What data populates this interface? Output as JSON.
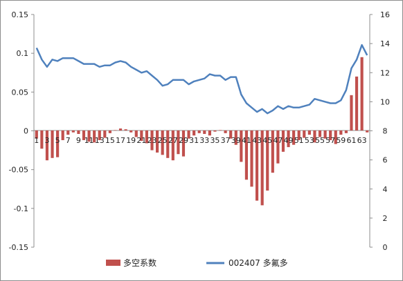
{
  "chart_data": {
    "type": "bar+line",
    "x": [
      1,
      2,
      3,
      4,
      5,
      6,
      7,
      8,
      9,
      10,
      11,
      12,
      13,
      14,
      15,
      16,
      17,
      18,
      19,
      20,
      21,
      22,
      23,
      24,
      25,
      26,
      27,
      28,
      29,
      30,
      31,
      32,
      33,
      34,
      35,
      36,
      37,
      38,
      39,
      40,
      41,
      42,
      43,
      44,
      45,
      46,
      47,
      48,
      49,
      50,
      51,
      52,
      53,
      54,
      55,
      56,
      57,
      58,
      59,
      60,
      61,
      62,
      63,
      64
    ],
    "x_tick_labels": [
      "1",
      "3",
      "5",
      "7",
      "9",
      "11",
      "13",
      "15",
      "17",
      "19",
      "21",
      "23",
      "25",
      "27",
      "29",
      "31",
      "33",
      "35",
      "37",
      "39",
      "41",
      "43",
      "45",
      "47",
      "49",
      "51",
      "53",
      "55",
      "57",
      "59",
      "61",
      "63"
    ],
    "y_left": {
      "min": -0.15,
      "max": 0.15,
      "ticks": [
        "0.15",
        "0.1",
        "0.05",
        "0",
        "-0.05",
        "-0.1",
        "-0.15"
      ]
    },
    "y_right": {
      "min": 0,
      "max": 16,
      "ticks": [
        "16",
        "14",
        "12",
        "10",
        "8",
        "6",
        "4",
        "2",
        "0"
      ]
    },
    "series": [
      {
        "name": "多空系数",
        "kind": "bar",
        "axis": "left",
        "color": "#c0504d",
        "values": [
          -0.01,
          -0.023,
          -0.038,
          -0.035,
          -0.034,
          -0.012,
          -0.005,
          -0.002,
          -0.004,
          -0.012,
          -0.014,
          -0.015,
          -0.012,
          -0.009,
          -0.003,
          0.001,
          0.003,
          0.002,
          -0.002,
          -0.008,
          -0.013,
          -0.016,
          -0.025,
          -0.028,
          -0.031,
          -0.035,
          -0.038,
          -0.03,
          -0.033,
          -0.01,
          -0.006,
          -0.003,
          -0.004,
          -0.006,
          -0.001,
          0.001,
          -0.003,
          -0.01,
          -0.018,
          -0.04,
          -0.063,
          -0.072,
          -0.09,
          -0.096,
          -0.077,
          -0.054,
          -0.042,
          -0.027,
          -0.021,
          -0.018,
          -0.012,
          -0.009,
          -0.005,
          -0.015,
          -0.008,
          -0.01,
          -0.012,
          -0.017,
          -0.005,
          -0.003,
          0.046,
          0.07,
          0.095,
          -0.002
        ]
      },
      {
        "name": "002407 多氟多",
        "kind": "line",
        "axis": "right",
        "color": "#4f81bd",
        "values": [
          13.7,
          12.9,
          12.4,
          12.9,
          12.8,
          13.0,
          13.0,
          13.0,
          12.8,
          12.6,
          12.6,
          12.6,
          12.4,
          12.5,
          12.5,
          12.7,
          12.8,
          12.7,
          12.4,
          12.2,
          12.0,
          12.1,
          11.8,
          11.5,
          11.1,
          11.2,
          11.5,
          11.5,
          11.5,
          11.2,
          11.4,
          11.5,
          11.6,
          11.9,
          11.8,
          11.8,
          11.5,
          11.7,
          11.7,
          10.5,
          9.9,
          9.6,
          9.3,
          9.5,
          9.2,
          9.4,
          9.7,
          9.5,
          9.7,
          9.6,
          9.6,
          9.7,
          9.8,
          10.2,
          10.1,
          10.0,
          9.9,
          9.9,
          10.1,
          10.8,
          12.3,
          12.9,
          13.9,
          13.2
        ]
      }
    ],
    "title": "",
    "xlabel": "",
    "ylabel": "",
    "grid": false,
    "legend_placement": "bottom"
  }
}
